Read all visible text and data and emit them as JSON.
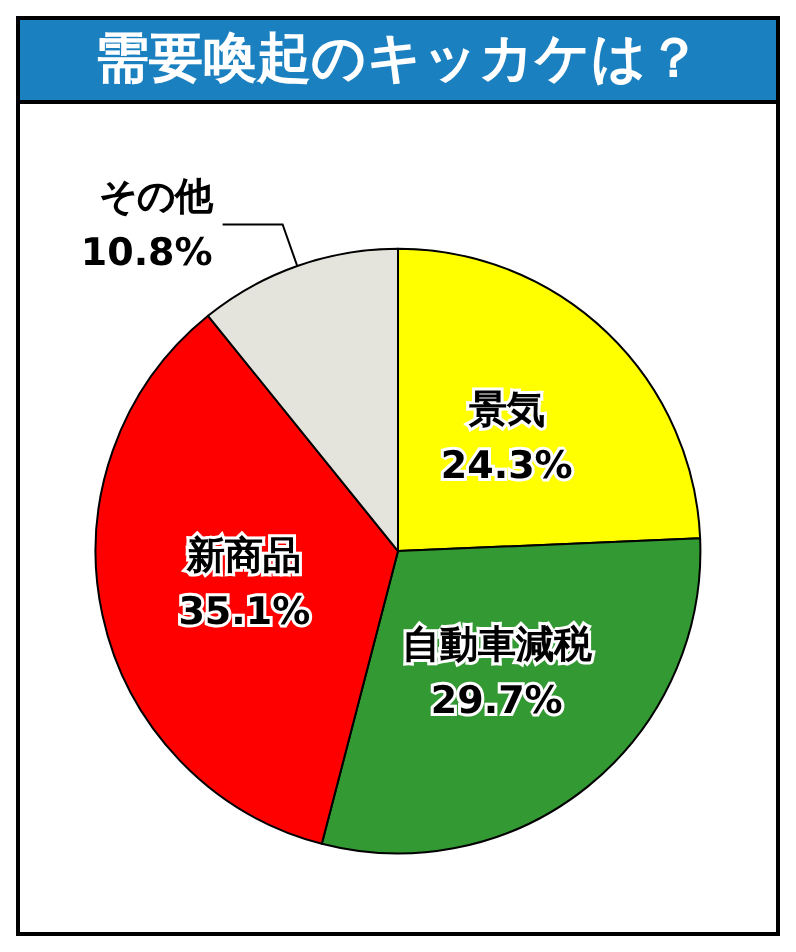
{
  "chart_data": {
    "type": "pie",
    "title": "需要喚起のキッカケは？",
    "categories": [
      "景気",
      "自動車減税",
      "新商品",
      "その他"
    ],
    "values": [
      24.3,
      29.7,
      35.1,
      10.8
    ],
    "colors": [
      "#ffff00",
      "#339933",
      "#ff0000",
      "#e4e4dc"
    ],
    "value_labels": [
      "24.3%",
      "29.7%",
      "35.1%",
      "10.8%"
    ],
    "legend": false
  }
}
